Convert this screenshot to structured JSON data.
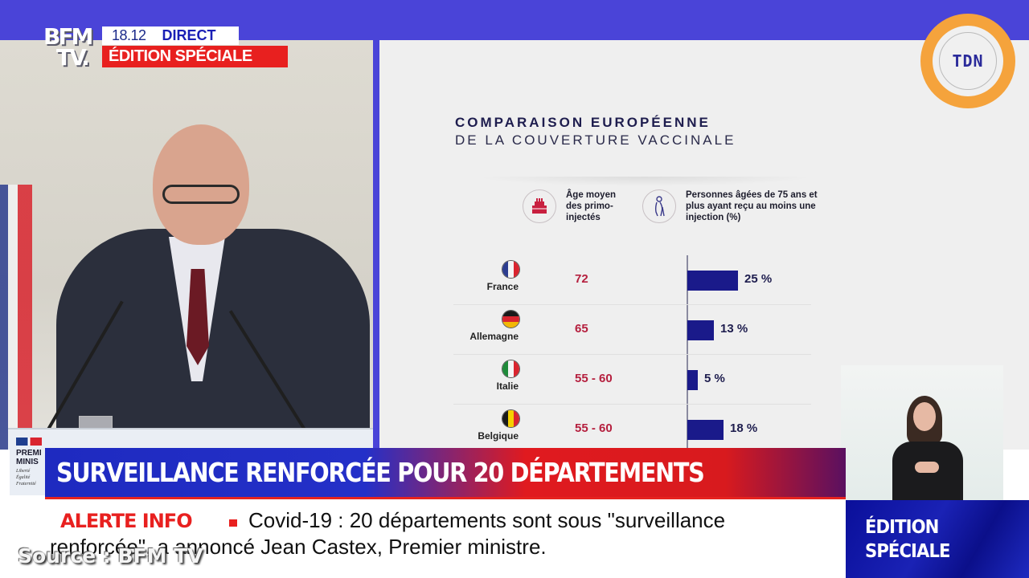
{
  "broadcast": {
    "channel_logo_line1": "BFM",
    "channel_logo_line2": "TV.",
    "time": "18.12",
    "live_label": "DIRECT",
    "edition_label": "ÉDITION SPÉCIALE"
  },
  "watermark": {
    "label": "TDN",
    "ring_color": "#f5a33c"
  },
  "podium": {
    "government_line1": "PREMI",
    "government_line2": "MINIS",
    "motto": [
      "Liberté",
      "Égalité",
      "Fraternité"
    ]
  },
  "slide": {
    "title": "COMPARAISON EUROPÉENNE",
    "subtitle": "DE LA COUVERTURE VACCINALE",
    "columns": [
      {
        "icon": "birthday-cake-icon",
        "label_lines": [
          "Âge moyen",
          "des primo-",
          "injectés"
        ]
      },
      {
        "icon": "elderly-person-icon",
        "label_lines": [
          "Personnes âgées de 75 ans et",
          "plus ayant reçu au moins une",
          "injection (%)"
        ]
      }
    ],
    "rows": [
      {
        "country": "France",
        "flag": [
          "#2c3d8f",
          "#f4f4f4",
          "#d9252f"
        ],
        "flag_dir": "v",
        "age": "72",
        "pct_value": 25,
        "pct_label": "25 %"
      },
      {
        "country": "Allemagne",
        "flag": [
          "#1a1a1a",
          "#d9252f",
          "#f2b705"
        ],
        "flag_dir": "h",
        "age": "65",
        "pct_value": 13,
        "pct_label": "13 %"
      },
      {
        "country": "Italie",
        "flag": [
          "#1f8a3a",
          "#f4f4f4",
          "#d9252f"
        ],
        "flag_dir": "v",
        "age": "55 - 60",
        "pct_value": 5,
        "pct_label": "5 %"
      },
      {
        "country": "Belgique",
        "flag": [
          "#1a1a1a",
          "#f5d000",
          "#d9252f"
        ],
        "flag_dir": "v",
        "age": "55 - 60",
        "pct_value": 18,
        "pct_label": "18 %"
      }
    ],
    "colors": {
      "age": "#b51f3e",
      "bar": "#1a1a8a"
    }
  },
  "lower_third": {
    "headline": "SURVEILLANCE RENFORCÉE POUR 20 DÉPARTEMENTS",
    "alert_label": "ALERTE INFO",
    "ticker_line1": "Covid-19 : 20 départements sont sous \"surveillance",
    "ticker_line2": "renforcée\", a annoncé Jean Castex, Premier ministre.",
    "edition_box_line1": "ÉDITION",
    "edition_box_line2": "SPÉCIALE"
  },
  "source_caption": "Source : BFM TV",
  "chart_data": {
    "type": "bar",
    "title": "COMPARAISON EUROPÉENNE DE LA COUVERTURE VACCINALE",
    "categories": [
      "France",
      "Allemagne",
      "Italie",
      "Belgique"
    ],
    "series": [
      {
        "name": "Personnes âgées de 75 ans et plus ayant reçu au moins une injection (%)",
        "values": [
          25,
          13,
          5,
          18
        ]
      }
    ],
    "table_columns": [
      "Âge moyen des primo-injectés"
    ],
    "table_values": [
      "72",
      "65",
      "55 - 60",
      "55 - 60"
    ],
    "orientation": "horizontal",
    "xlabel": "",
    "ylabel": ""
  }
}
